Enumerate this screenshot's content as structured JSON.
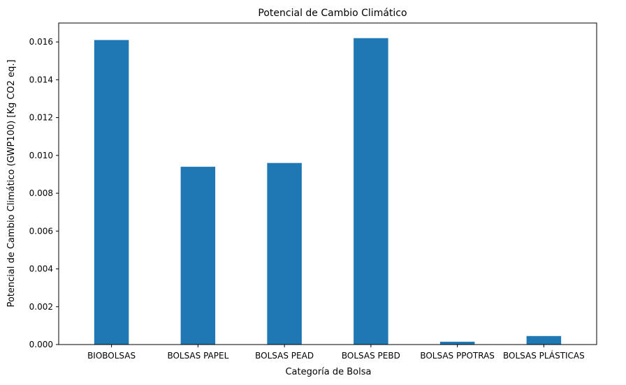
{
  "chart_data": {
    "type": "bar",
    "title": "Potencial de Cambio Climático",
    "xlabel": "Categoría de Bolsa",
    "ylabel": "Potencial de Cambio Climático (GWP100) [Kg CO2 eq.]",
    "categories": [
      "BIOBOLSAS",
      "BOLSAS PAPEL",
      "BOLSAS PEAD",
      "BOLSAS PEBD",
      "BOLSAS PPOTRAS",
      "BOLSAS PLÁSTICAS"
    ],
    "values": [
      0.0161,
      0.0094,
      0.0096,
      0.0162,
      0.00015,
      0.00045
    ],
    "ylim": [
      0,
      0.017
    ],
    "yticks": [
      "0.000",
      "0.002",
      "0.004",
      "0.006",
      "0.008",
      "0.010",
      "0.012",
      "0.014",
      "0.016"
    ],
    "bar_color": "#1f77b4",
    "grid": false
  }
}
